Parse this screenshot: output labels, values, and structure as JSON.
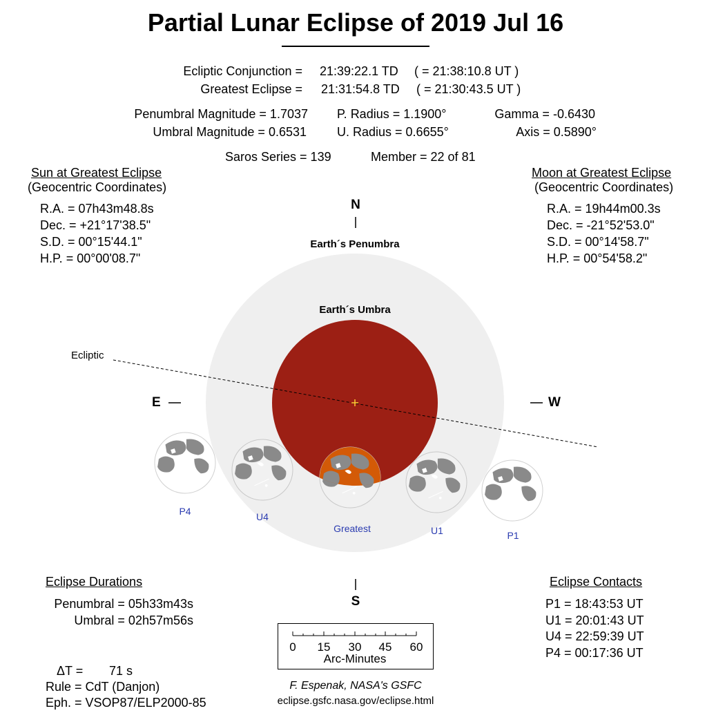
{
  "title": "Partial Lunar Eclipse of  2019 Jul 16",
  "times": {
    "conj_label": "Ecliptic Conjunction =",
    "conj_td": "21:39:22.1 TD",
    "conj_ut": "( = 21:38:10.8 UT )",
    "greatest_label": "Greatest Eclipse =",
    "greatest_td": "21:31:54.8 TD",
    "greatest_ut": "( = 21:30:43.5 UT )"
  },
  "params": {
    "pen_mag": "Penumbral Magnitude =  1.7037",
    "umb_mag": "Umbral Magnitude =  0.6531",
    "p_radius": "P. Radius = 1.1900°",
    "u_radius": "U. Radius = 0.6655°",
    "gamma": "Gamma = -0.6430",
    "axis": "Axis =  0.5890°",
    "saros": "Saros Series = 139",
    "member": "Member = 22 of 81"
  },
  "sun": {
    "heading": "Sun at Greatest Eclipse",
    "subheading": "(Geocentric Coordinates)",
    "rows": [
      "R.A. =  07h43m48.8s",
      "Dec. = +21°17'38.5\"",
      "S.D. =  00°15'44.1\"",
      "H.P. =  00°00'08.7\""
    ]
  },
  "moon": {
    "heading": "Moon at Greatest Eclipse",
    "subheading": "(Geocentric Coordinates)",
    "rows": [
      "R.A. =  19h44m00.3s",
      "Dec. = -21°52'53.0\"",
      "S.D. =  00°14'58.7\"",
      "H.P. =  00°54'58.2\""
    ]
  },
  "diagram": {
    "north": "N",
    "south": "S",
    "east": "E",
    "west": "W",
    "penumbra_label": "Earth´s Penumbra",
    "umbra_label": "Earth´s Umbra",
    "ecliptic_label": "Ecliptic",
    "moons": [
      {
        "label": "P4"
      },
      {
        "label": "U4"
      },
      {
        "label": "Greatest"
      },
      {
        "label": "U1"
      },
      {
        "label": "P1"
      }
    ],
    "colors": {
      "penumbra": "#efefef",
      "umbra": "#9c1f14",
      "moon_in_umbra": "#d35a07",
      "label_blue": "#2a3bb0",
      "center_mark": "#ffcc33"
    }
  },
  "durations": {
    "heading": "Eclipse Durations",
    "penumbral": "Penumbral = 05h33m43s",
    "umbral": "Umbral = 02h57m56s"
  },
  "contacts": {
    "heading": "Eclipse Contacts",
    "rows": [
      "P1 = 18:43:53 UT",
      "U1 = 20:01:43 UT",
      "U4 = 22:59:39 UT",
      "P4 = 00:17:36 UT"
    ]
  },
  "scale": {
    "ticks": [
      "0",
      "15",
      "30",
      "45",
      "60"
    ],
    "label": "Arc-Minutes"
  },
  "misc": {
    "delta_t_label": "ΔT =",
    "delta_t_value": "71 s",
    "rule": "Rule = CdT (Danjon)",
    "eph": "Eph. = VSOP87/ELP2000-85"
  },
  "credit": {
    "author": "F. Espenak, NASA's GSFC",
    "url": "eclipse.gsfc.nasa.gov/eclipse.html"
  }
}
